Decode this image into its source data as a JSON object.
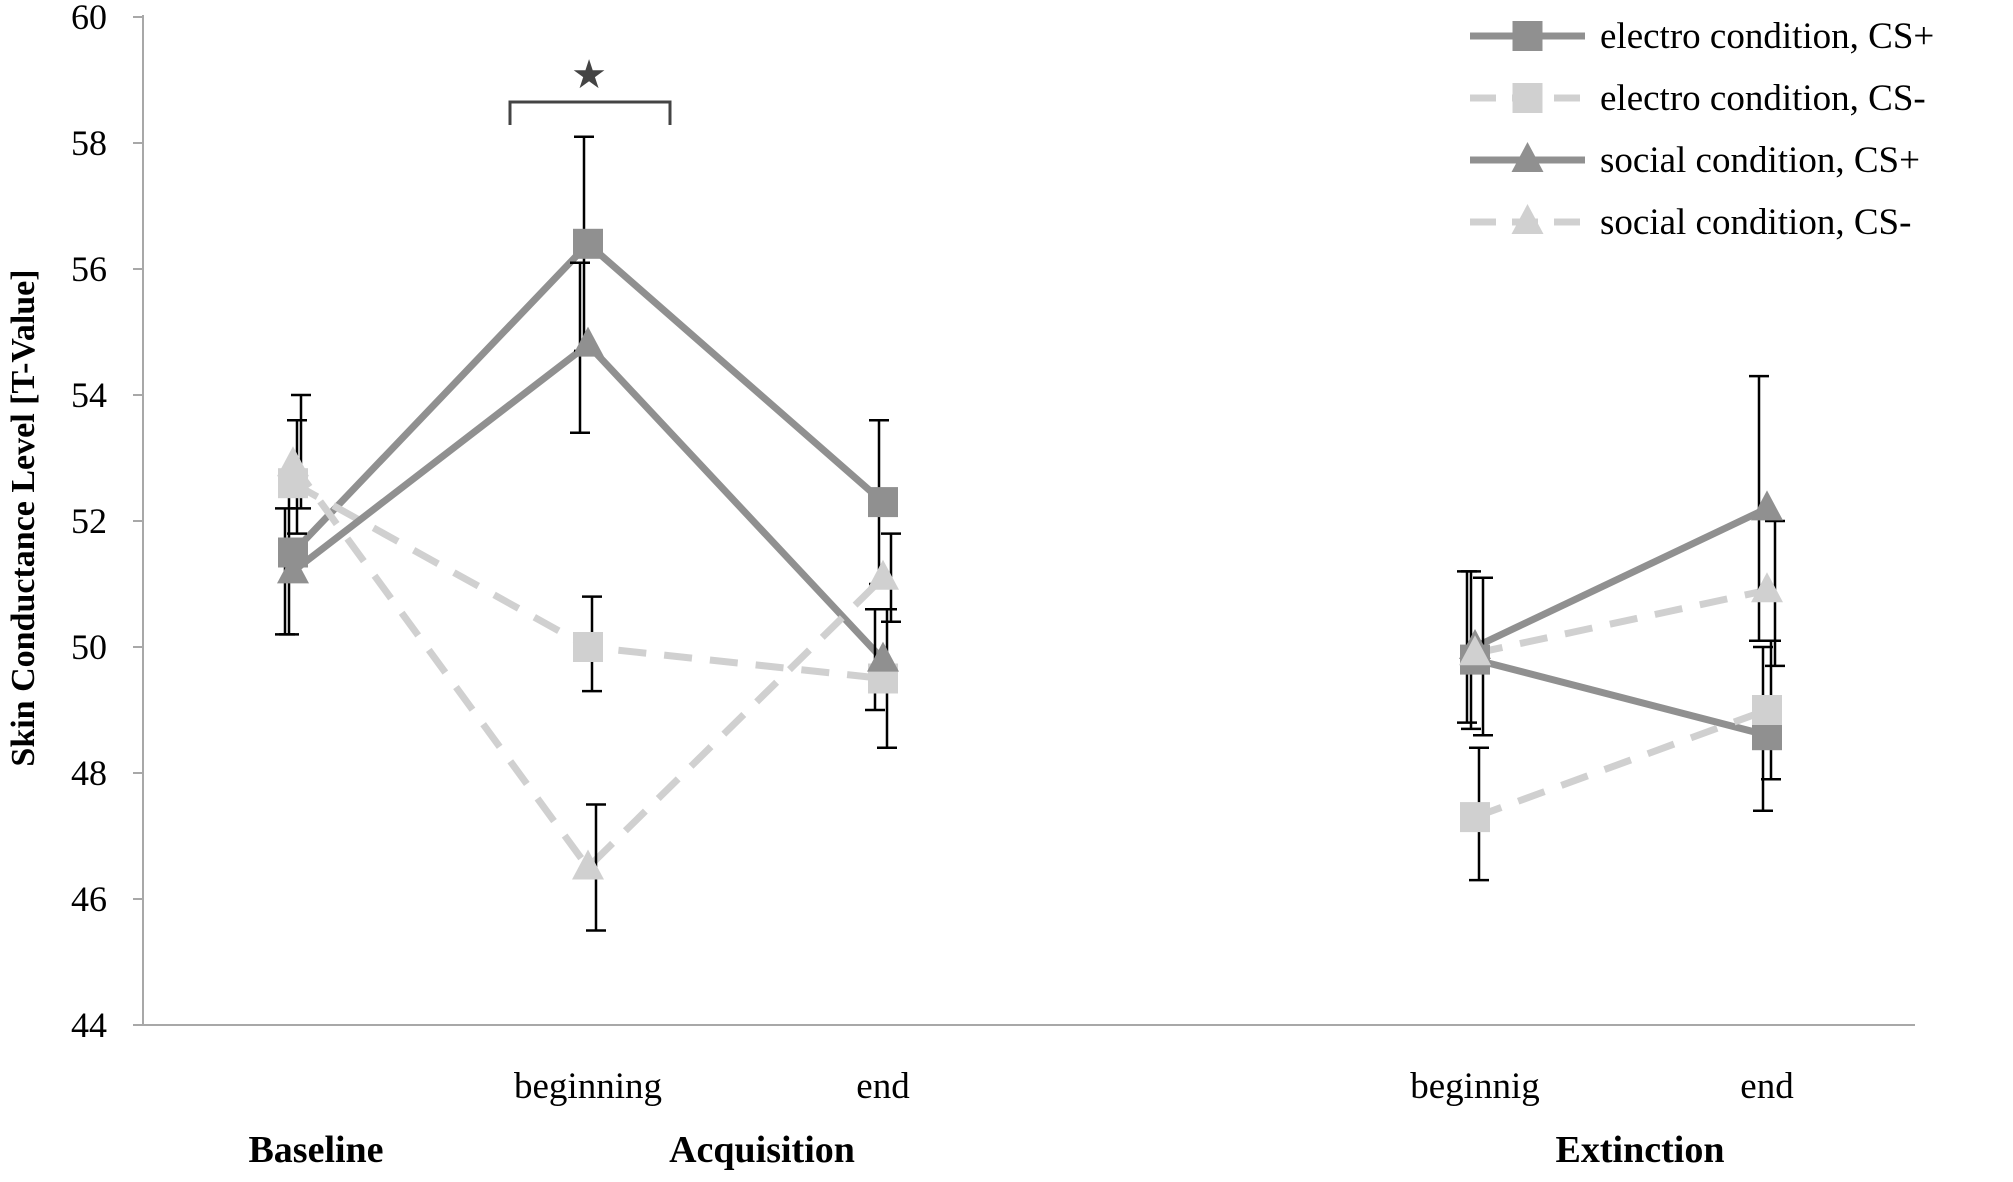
{
  "chart_data": {
    "type": "line",
    "title": "",
    "xlabel": "",
    "ylabel": "Skin Conductance Level [T-Value]",
    "ylim": [
      44,
      60
    ],
    "yticks": [
      "44",
      "46",
      "48",
      "50",
      "52",
      "54",
      "56",
      "58",
      "60"
    ],
    "grid": false,
    "legend_position": "top-right",
    "x_points": [
      "",
      "beginning",
      "end",
      "beginnig",
      "end"
    ],
    "phases": [
      {
        "label": "Baseline",
        "points": [
          0
        ]
      },
      {
        "label": "Acquisition",
        "points": [
          1,
          2
        ]
      },
      {
        "label": "Extinction",
        "points": [
          3,
          4
        ]
      }
    ],
    "series": [
      {
        "name": "electro condition, CS+",
        "color": "#909090",
        "dashed": false,
        "marker": "square",
        "segments": [
          [
            0,
            1,
            2
          ],
          [
            3,
            4
          ]
        ],
        "values": [
          51.5,
          56.4,
          52.3,
          49.8,
          48.6
        ],
        "error": [
          [
            50.2,
            52.8
          ],
          [
            54.7,
            58.1
          ],
          [
            51.0,
            53.6
          ],
          [
            48.7,
            51.2
          ],
          [
            47.4,
            50.0
          ]
        ]
      },
      {
        "name": "electro condition, CS-",
        "color": "#d0d0d0",
        "dashed": true,
        "marker": "square",
        "segments": [
          [
            0,
            1,
            2
          ],
          [
            3,
            4
          ]
        ],
        "values": [
          52.6,
          50.0,
          49.5,
          47.3,
          49.0
        ],
        "error": [
          [
            51.8,
            53.6
          ],
          [
            49.3,
            50.8
          ],
          [
            48.4,
            50.6
          ],
          [
            46.3,
            48.4
          ],
          [
            47.9,
            50.1
          ]
        ]
      },
      {
        "name": "social condition, CS+",
        "color": "#909090",
        "dashed": false,
        "marker": "triangle",
        "segments": [
          [
            0,
            1,
            2
          ],
          [
            3,
            4
          ]
        ],
        "values": [
          51.2,
          54.8,
          49.8,
          50.0,
          52.2
        ],
        "error": [
          [
            50.2,
            52.2
          ],
          [
            53.4,
            56.1
          ],
          [
            49.0,
            50.6
          ],
          [
            48.8,
            51.2
          ],
          [
            50.1,
            54.3
          ]
        ]
      },
      {
        "name": "social condition, CS-",
        "color": "#d0d0d0",
        "dashed": true,
        "marker": "triangle",
        "segments": [
          [
            0,
            1,
            2
          ],
          [
            3,
            4
          ]
        ],
        "values": [
          52.9,
          46.5,
          51.1,
          49.9,
          50.9
        ],
        "error": [
          [
            52.2,
            54.0
          ],
          [
            45.5,
            47.5
          ],
          [
            50.4,
            51.8
          ],
          [
            48.6,
            51.1
          ],
          [
            49.7,
            52.0
          ]
        ]
      }
    ],
    "significance": {
      "symbol": "★",
      "between": "beginning (Acquisition)"
    }
  }
}
